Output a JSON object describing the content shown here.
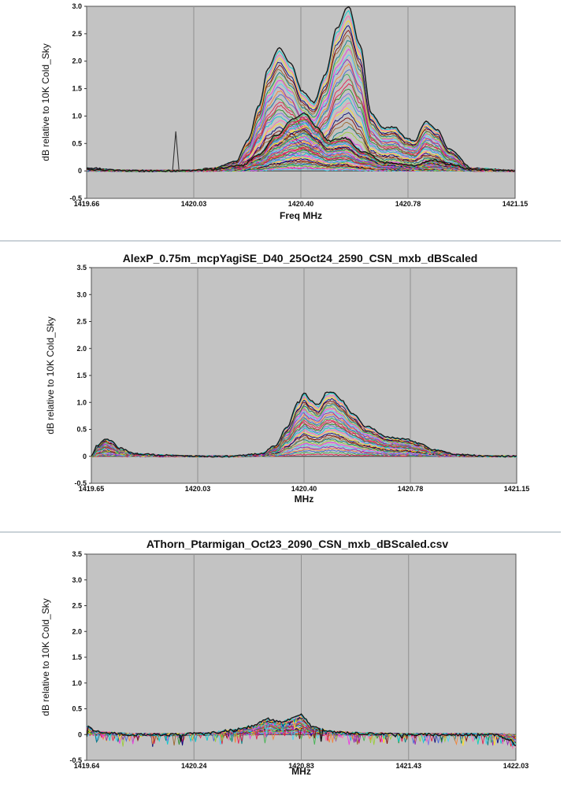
{
  "chart_data": [
    {
      "type": "line",
      "title": "",
      "xlabel": "Freq MHz",
      "ylabel": "dB relative to 10K Cold_Sky",
      "xlim": [
        1419.66,
        1421.15
      ],
      "ylim": [
        -0.5,
        3.0
      ],
      "xticks": [
        "1419.66",
        "1420.03",
        "1420.40",
        "1420.78",
        "1421.15"
      ],
      "yticks": [
        "-0.5",
        "0",
        "0.5",
        "1.0",
        "1.5",
        "2.0",
        "2.5",
        "3.0"
      ],
      "grid": true,
      "background": "#c3c3c3",
      "series": [
        {
          "x": [
            1419.66,
            1419.8,
            1419.95,
            1420.03,
            1420.1,
            1420.18,
            1420.22,
            1420.26,
            1420.29,
            1420.33,
            1420.37,
            1420.41,
            1420.45,
            1420.49,
            1420.53,
            1420.57,
            1420.61,
            1420.65,
            1420.69,
            1420.73,
            1420.77,
            1420.8,
            1420.84,
            1420.88,
            1420.92,
            1421.0,
            1421.15
          ],
          "values": [
            0.05,
            0.0,
            0.0,
            0.01,
            0.05,
            0.18,
            0.55,
            1.2,
            1.85,
            2.25,
            1.95,
            1.45,
            1.25,
            1.75,
            2.6,
            3.0,
            2.3,
            1.05,
            0.78,
            0.8,
            0.6,
            0.55,
            0.9,
            0.75,
            0.4,
            0.05,
            0.0
          ]
        },
        {
          "x": [
            1419.66,
            1419.9,
            1420.0,
            1420.1,
            1420.2,
            1420.26,
            1420.32,
            1420.38,
            1420.42,
            1420.46,
            1420.5,
            1420.56,
            1420.62,
            1420.7,
            1420.8,
            1420.86,
            1420.92,
            1421.0,
            1421.15
          ],
          "values": [
            0.02,
            0.0,
            0.0,
            0.03,
            0.1,
            0.3,
            0.65,
            0.95,
            1.05,
            0.8,
            0.55,
            0.6,
            0.35,
            0.15,
            0.1,
            0.2,
            0.12,
            0.03,
            0.0
          ]
        }
      ]
    },
    {
      "type": "line",
      "title": "AlexP_0.75m_mcpYagiSE_D40_25Oct24_2590_CSN_mxb_dBScaled",
      "xlabel": "MHz",
      "ylabel": "dB relative to 10K Cold_Sky",
      "xlim": [
        1419.65,
        1421.15
      ],
      "ylim": [
        -0.5,
        3.5
      ],
      "xticks": [
        "1419.65",
        "1420.03",
        "1420.40",
        "1420.78",
        "1421.15"
      ],
      "yticks": [
        "-0.5",
        "0",
        "0.5",
        "1.0",
        "1.5",
        "2.0",
        "2.5",
        "3.0",
        "3.5"
      ],
      "grid": true,
      "background": "#c3c3c3",
      "series": [
        {
          "x": [
            1419.65,
            1419.67,
            1419.7,
            1419.72,
            1419.75,
            1419.8,
            1419.9,
            1420.03,
            1420.15,
            1420.25,
            1420.3,
            1420.34,
            1420.38,
            1420.4,
            1420.42,
            1420.45,
            1420.48,
            1420.5,
            1420.53,
            1420.57,
            1420.62,
            1420.7,
            1420.76,
            1420.8,
            1420.86,
            1420.95,
            1421.05,
            1421.15
          ],
          "values": [
            0.0,
            0.2,
            0.33,
            0.28,
            0.15,
            0.05,
            0.02,
            0.0,
            0.0,
            0.05,
            0.2,
            0.55,
            1.0,
            1.18,
            1.05,
            0.95,
            1.18,
            1.2,
            1.05,
            0.8,
            0.55,
            0.35,
            0.32,
            0.25,
            0.12,
            0.03,
            0.0,
            0.0
          ]
        }
      ]
    },
    {
      "type": "line",
      "title": "AThorn_Ptarmigan_Oct23_2090_CSN_mxb_dBScaled.csv",
      "xlabel": "MHz",
      "ylabel": "dB relative to 10K Cold_Sky",
      "xlim": [
        1419.64,
        1422.03
      ],
      "ylim": [
        -0.5,
        3.5
      ],
      "xticks": [
        "1419.64",
        "1420.24",
        "1420.83",
        "1421.43",
        "1422.03"
      ],
      "yticks": [
        "-0.5",
        "0",
        "0.5",
        "1.0",
        "1.5",
        "2.0",
        "2.5",
        "3.0",
        "3.5"
      ],
      "grid": true,
      "background": "#c3c3c3",
      "series": [
        {
          "x": [
            1419.64,
            1419.7,
            1419.9,
            1420.1,
            1420.3,
            1420.45,
            1420.55,
            1420.65,
            1420.72,
            1420.78,
            1420.83,
            1420.9,
            1421.0,
            1421.2,
            1421.43,
            1421.7,
            1421.9,
            1422.0,
            1422.03
          ],
          "values": [
            0.15,
            0.05,
            0.0,
            0.0,
            0.02,
            0.08,
            0.15,
            0.3,
            0.25,
            0.3,
            0.38,
            0.15,
            0.05,
            0.02,
            0.0,
            0.0,
            0.0,
            -0.1,
            -0.2
          ]
        }
      ]
    }
  ]
}
